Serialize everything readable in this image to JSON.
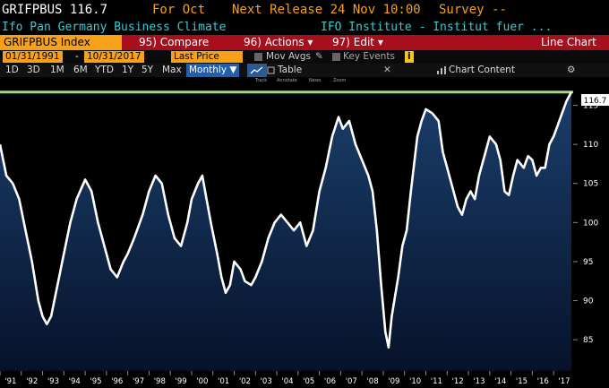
{
  "header": {
    "ticker_price": "GRIFPBUS 116.7",
    "for_period": "For Oct",
    "next_release": "Next Release 24 Nov 10:00",
    "survey": "Survey --"
  },
  "subheader": {
    "name": "Ifo Pan Germany Business Climate",
    "source": "IFO Institute - Institut fuer ..."
  },
  "menu": {
    "security": "GRIFPBUS Index",
    "compare": "95) Compare",
    "actions": "96) Actions ▾",
    "edit": "97) Edit ▾",
    "chart_type": "Line Chart"
  },
  "controls": {
    "start_date": "01/31/1991",
    "end_date": "10/31/2017",
    "separator": "-",
    "field": "Last Price",
    "mov_avgs": "Mov Avgs",
    "key_events": "Key Events",
    "info_badge": "i"
  },
  "toolbar": {
    "ranges": [
      "1D",
      "3D",
      "1M",
      "6M",
      "YTD",
      "1Y",
      "5Y",
      "Max"
    ],
    "period": "Monthly ▼",
    "table": "Table",
    "chart_content": "Chart Content"
  },
  "annotation_tools": [
    "Track",
    "Annotate",
    "News",
    "Zoom"
  ],
  "chart_data": {
    "type": "line",
    "series": [
      {
        "values": [
          [
            1991.0,
            110
          ],
          [
            1991.3,
            106
          ],
          [
            1991.6,
            105
          ],
          [
            1991.9,
            103
          ],
          [
            1992.2,
            99
          ],
          [
            1992.5,
            95
          ],
          [
            1992.8,
            90
          ],
          [
            1993.0,
            88
          ],
          [
            1993.2,
            87
          ],
          [
            1993.4,
            88
          ],
          [
            1993.7,
            92
          ],
          [
            1994.0,
            96
          ],
          [
            1994.3,
            100
          ],
          [
            1994.6,
            103
          ],
          [
            1995.0,
            105.5
          ],
          [
            1995.3,
            104
          ],
          [
            1995.6,
            100
          ],
          [
            1995.9,
            97
          ],
          [
            1996.2,
            94
          ],
          [
            1996.5,
            93
          ],
          [
            1996.8,
            95
          ],
          [
            1997.0,
            96
          ],
          [
            1997.3,
            98
          ],
          [
            1997.7,
            101
          ],
          [
            1998.0,
            104
          ],
          [
            1998.3,
            106
          ],
          [
            1998.6,
            105
          ],
          [
            1998.9,
            101
          ],
          [
            1999.2,
            98
          ],
          [
            1999.5,
            97
          ],
          [
            1999.8,
            100
          ],
          [
            2000.0,
            103
          ],
          [
            2000.3,
            105
          ],
          [
            2000.5,
            106
          ],
          [
            2000.7,
            103
          ],
          [
            2000.9,
            100
          ],
          [
            2001.2,
            96
          ],
          [
            2001.4,
            93
          ],
          [
            2001.6,
            91
          ],
          [
            2001.8,
            92
          ],
          [
            2002.0,
            95
          ],
          [
            2002.3,
            94
          ],
          [
            2002.5,
            92.5
          ],
          [
            2002.8,
            92
          ],
          [
            2003.0,
            93
          ],
          [
            2003.3,
            95
          ],
          [
            2003.6,
            98
          ],
          [
            2003.9,
            100
          ],
          [
            2004.2,
            101
          ],
          [
            2004.5,
            100
          ],
          [
            2004.8,
            99
          ],
          [
            2005.1,
            100
          ],
          [
            2005.4,
            97
          ],
          [
            2005.7,
            99
          ],
          [
            2006.0,
            104
          ],
          [
            2006.3,
            107
          ],
          [
            2006.6,
            111
          ],
          [
            2006.9,
            113.5
          ],
          [
            2007.1,
            112
          ],
          [
            2007.4,
            113
          ],
          [
            2007.7,
            110
          ],
          [
            2008.0,
            108
          ],
          [
            2008.3,
            106
          ],
          [
            2008.5,
            104
          ],
          [
            2008.7,
            99
          ],
          [
            2008.9,
            92
          ],
          [
            2009.1,
            86
          ],
          [
            2009.25,
            84
          ],
          [
            2009.4,
            88
          ],
          [
            2009.7,
            93
          ],
          [
            2009.9,
            97
          ],
          [
            2010.1,
            99
          ],
          [
            2010.3,
            104
          ],
          [
            2010.6,
            111
          ],
          [
            2010.8,
            113
          ],
          [
            2011.0,
            114.5
          ],
          [
            2011.3,
            114
          ],
          [
            2011.6,
            113
          ],
          [
            2011.8,
            109
          ],
          [
            2012.0,
            107
          ],
          [
            2012.3,
            104
          ],
          [
            2012.5,
            102
          ],
          [
            2012.7,
            101
          ],
          [
            2012.9,
            103
          ],
          [
            2013.1,
            104
          ],
          [
            2013.3,
            103
          ],
          [
            2013.5,
            106
          ],
          [
            2013.8,
            109
          ],
          [
            2014.0,
            111
          ],
          [
            2014.3,
            110
          ],
          [
            2014.5,
            108
          ],
          [
            2014.7,
            104
          ],
          [
            2014.9,
            103.5
          ],
          [
            2015.1,
            106
          ],
          [
            2015.3,
            108
          ],
          [
            2015.6,
            107
          ],
          [
            2015.8,
            108.5
          ],
          [
            2016.0,
            108
          ],
          [
            2016.2,
            106
          ],
          [
            2016.4,
            107
          ],
          [
            2016.6,
            107
          ],
          [
            2016.8,
            110
          ],
          [
            2017.0,
            111
          ],
          [
            2017.2,
            112.5
          ],
          [
            2017.4,
            114
          ],
          [
            2017.6,
            115.5
          ],
          [
            2017.83,
            116.7
          ]
        ]
      }
    ],
    "x_tick_labels": [
      "'91",
      "'92",
      "'93",
      "'94",
      "'95",
      "'96",
      "'97",
      "'98",
      "'99",
      "'00",
      "'01",
      "'02",
      "'03",
      "'04",
      "'05",
      "'06",
      "'07",
      "'08",
      "'09",
      "'10",
      "'11",
      "'12",
      "'13",
      "'14",
      "'15",
      "'16",
      "'17"
    ],
    "y_ticks": [
      85,
      90,
      95,
      100,
      105,
      110,
      115
    ],
    "ylim": [
      81,
      117.7
    ],
    "xlim": [
      1991.0,
      2017.92
    ],
    "last_value_label": "116.7",
    "reference_level": 116.7,
    "colors": {
      "line": "#ffffff",
      "fill_top": "#1b3f6c",
      "fill_bottom": "#06122a",
      "reference": "#9edc7a",
      "background": "#000000"
    }
  }
}
